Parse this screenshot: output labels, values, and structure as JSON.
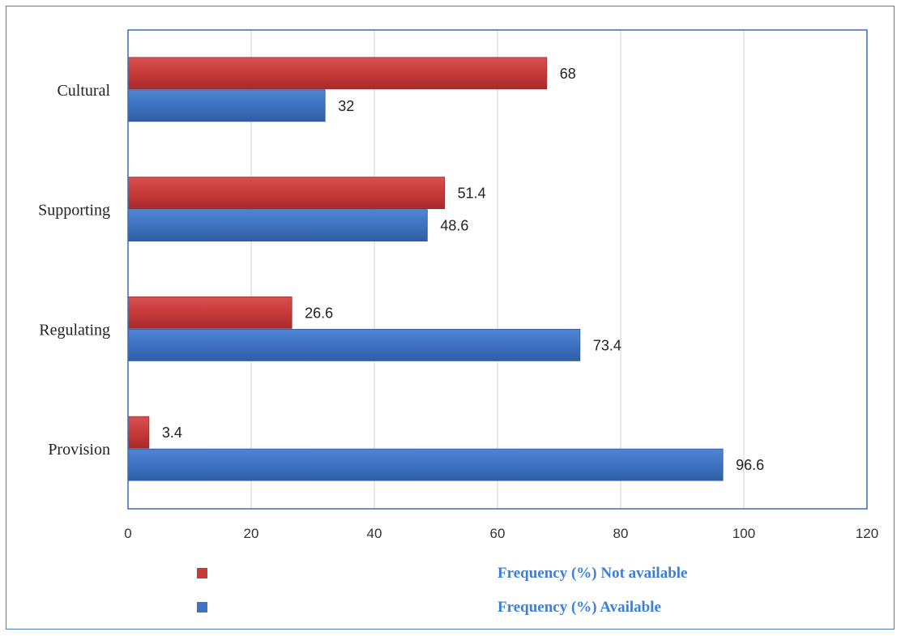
{
  "colors": {
    "not_available": "#c83a3a",
    "available": "#3f72c0",
    "grid": "#d0d0d0",
    "axis": "#3a6eb5",
    "legend_text": "#3d7ed8"
  },
  "chart_data": {
    "type": "bar",
    "orientation": "horizontal",
    "categories": [
      "Cultural",
      "Supporting",
      "Regulating",
      "Provision"
    ],
    "series": [
      {
        "name": "Frequency (%) Not available",
        "values": [
          68,
          51.4,
          26.6,
          3.4
        ]
      },
      {
        "name": "Frequency (%) Available",
        "values": [
          32,
          48.6,
          73.4,
          96.6
        ]
      }
    ],
    "xlim": [
      0,
      120
    ],
    "xticks": [
      0,
      20,
      40,
      60,
      80,
      100,
      120
    ],
    "grid": true,
    "legend": "bottom"
  }
}
